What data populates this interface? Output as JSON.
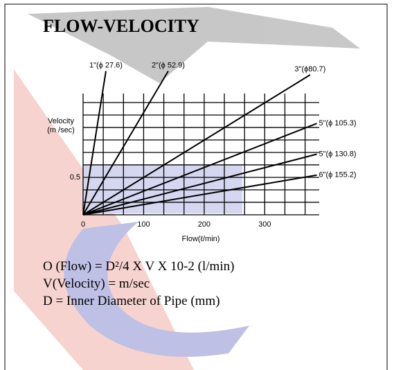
{
  "chart_data": {
    "type": "line",
    "title": "FLOW-VELOCITY",
    "y_label": [
      "Velocity",
      "(m /sec)"
    ],
    "x_label": "Flow(ℓ/min)",
    "xlim": [
      0,
      390
    ],
    "ylim": [
      0,
      1.62
    ],
    "xticks": [
      0,
      100,
      200,
      300
    ],
    "yticks": [
      0.5
    ],
    "grid_x": [
      0,
      33.3,
      66.7,
      100,
      133.3,
      166.7,
      200,
      233.3,
      266.7,
      300,
      333.3,
      366.7
    ],
    "grid_y": [
      0,
      0.167,
      0.333,
      0.5,
      0.667,
      0.833,
      1,
      1.167,
      1.333,
      1.5
    ],
    "color": "#000000",
    "series": [
      {
        "name": "1\"(ϕ 27.6)",
        "x": [
          0,
          37.7
        ],
        "values": [
          0,
          1.92
        ]
      },
      {
        "name": "2\"(ϕ 52.9)",
        "x": [
          0,
          140.6
        ],
        "values": [
          0,
          1.92
        ]
      },
      {
        "name": "3\"(ϕ80.7)",
        "x": [
          0,
          375
        ],
        "values": [
          0,
          1.87
        ]
      },
      {
        "name": "5\"(ϕ 105.3)",
        "x": [
          0,
          386
        ],
        "values": [
          0,
          1.22
        ]
      },
      {
        "name": "5\"(ϕ 130.8)",
        "x": [
          0,
          386
        ],
        "values": [
          0,
          0.81
        ]
      },
      {
        "name": "6\"(ϕ 155.2)",
        "x": [
          0,
          386
        ],
        "values": [
          0,
          0.53
        ]
      }
    ]
  },
  "notes": [
    "O (Flow) = D²/4 X V X 10-2 (l/min)",
    "V(Velocity) = m/sec",
    "D = Inner Diameter of Pipe (mm)"
  ]
}
